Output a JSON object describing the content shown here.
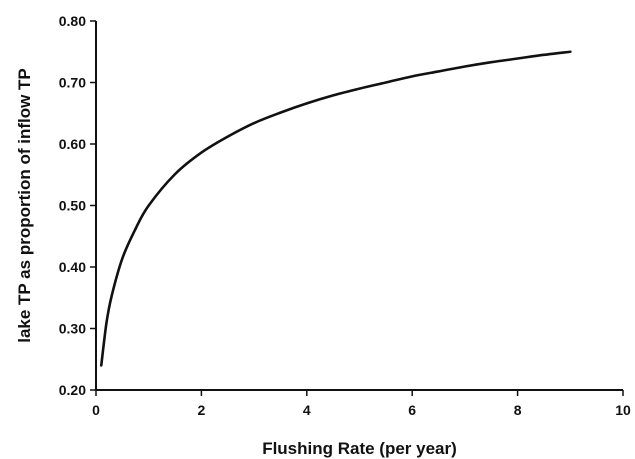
{
  "chart_data": {
    "type": "line",
    "title": "",
    "xlabel": "Flushing Rate (per year)",
    "ylabel": "lake TP as proportion of inflow TP",
    "xlim": [
      0,
      10
    ],
    "ylim": [
      0.2,
      0.8
    ],
    "x_ticks": [
      0,
      2,
      4,
      6,
      8,
      10
    ],
    "x_tick_labels": [
      "0",
      "2",
      "4",
      "6",
      "8",
      "10"
    ],
    "y_ticks": [
      0.2,
      0.3,
      0.4,
      0.5,
      0.6,
      0.7,
      0.8
    ],
    "y_tick_labels": [
      "0.20",
      "0.30",
      "0.40",
      "0.50",
      "0.60",
      "0.70",
      "0.80"
    ],
    "grid": false,
    "legend": "none",
    "line_color": "#111111",
    "series": [
      {
        "x": [
          0.1,
          0.2,
          0.3,
          0.5,
          0.75,
          1.0,
          1.5,
          2.0,
          2.5,
          3.0,
          3.5,
          4.0,
          4.5,
          5.0,
          5.5,
          6.0,
          6.5,
          7.0,
          7.5,
          8.0,
          8.5,
          9.0
        ],
        "values": [
          0.24,
          0.31,
          0.354,
          0.414,
          0.462,
          0.5,
          0.551,
          0.586,
          0.612,
          0.634,
          0.651,
          0.666,
          0.679,
          0.69,
          0.7,
          0.71,
          0.718,
          0.726,
          0.733,
          0.739,
          0.745,
          0.75
        ]
      }
    ]
  }
}
